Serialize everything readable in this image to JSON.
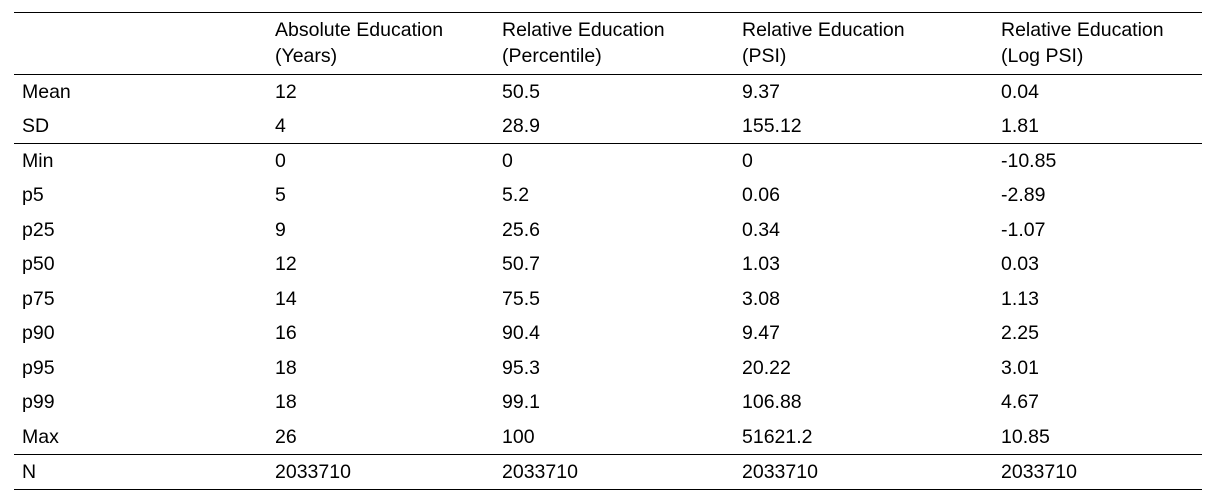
{
  "table": {
    "headers": [
      {
        "line1": "",
        "line2": ""
      },
      {
        "line1": "Absolute Education",
        "line2": "(Years)"
      },
      {
        "line1": "Relative Education",
        "line2": "(Percentile)"
      },
      {
        "line1": "Relative Education",
        "line2": "(PSI)"
      },
      {
        "line1": "Relative Education",
        "line2": "(Log PSI)"
      }
    ],
    "rows": [
      {
        "label": "Mean",
        "cells": [
          "12",
          "50.5",
          "9.37",
          "0.04"
        ]
      },
      {
        "label": "SD",
        "cells": [
          "4",
          "28.9",
          "155.12",
          "1.81"
        ]
      },
      {
        "label": "Min",
        "cells": [
          "0",
          "0",
          "0",
          "-10.85"
        ]
      },
      {
        "label": "p5",
        "cells": [
          "5",
          "5.2",
          "0.06",
          "-2.89"
        ]
      },
      {
        "label": "p25",
        "cells": [
          "9",
          "25.6",
          "0.34",
          "-1.07"
        ]
      },
      {
        "label": "p50",
        "cells": [
          "12",
          "50.7",
          "1.03",
          "0.03"
        ]
      },
      {
        "label": "p75",
        "cells": [
          "14",
          "75.5",
          "3.08",
          "1.13"
        ]
      },
      {
        "label": "p90",
        "cells": [
          "16",
          "90.4",
          "9.47",
          "2.25"
        ]
      },
      {
        "label": "p95",
        "cells": [
          "18",
          "95.3",
          "20.22",
          "3.01"
        ]
      },
      {
        "label": "p99",
        "cells": [
          "18",
          "99.1",
          "106.88",
          "4.67"
        ]
      },
      {
        "label": "Max",
        "cells": [
          "26",
          "100",
          "51621.2",
          "10.85"
        ]
      },
      {
        "label": "N",
        "cells": [
          "2033710",
          "2033710",
          "2033710",
          "2033710"
        ]
      }
    ]
  }
}
